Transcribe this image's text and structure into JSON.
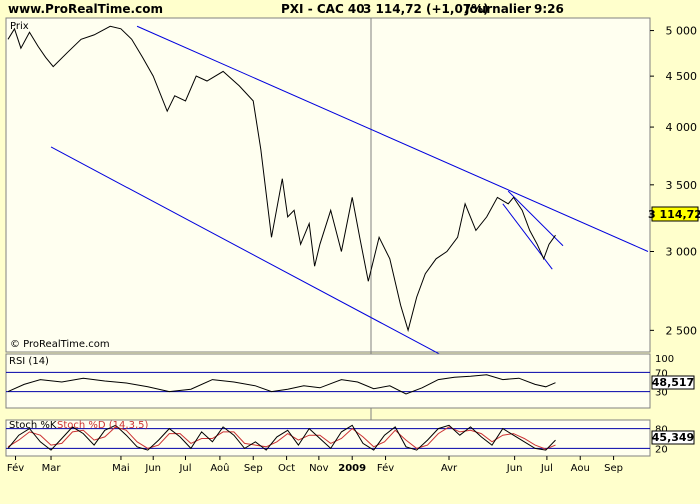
{
  "header": {
    "site": "www.ProRealTime.com",
    "instrument": "PXI - CAC 40",
    "quote": "3 114,72 (+1,07%)",
    "period": "Journalier",
    "time": "9:26"
  },
  "watermark": "© ProRealTime.com",
  "colors": {
    "background": "#ffffcc",
    "plot_background": "#fffff0",
    "price_line": "#000000",
    "trend_line": "#0000dd",
    "stoch_k": "#000000",
    "stoch_d": "#cc3333",
    "last_value_box": "#ffff00",
    "rsi_value_box": "#ffffff"
  },
  "chart_data": [
    {
      "type": "line",
      "title": "PXI - CAC 40",
      "legend": "Prix",
      "ylabel": "",
      "y_ticks": [
        2500,
        3000,
        3500,
        4000,
        4500,
        5000
      ],
      "y_tick_labels": [
        "2 500",
        "3 000",
        "3 500",
        "4 000",
        "4 500",
        "5 000"
      ],
      "ylim": [
        2400,
        5100
      ],
      "last_value": 3114.72,
      "last_value_label": "3 114,72",
      "x_labels": [
        "Fév",
        "Mar",
        "Mai",
        "Jun",
        "Jul",
        "Aoû",
        "Sep",
        "Oct",
        "Nov",
        "2009",
        "Fév",
        "Avr",
        "Jun",
        "Jul",
        "Aou",
        "Sep"
      ],
      "x_label_days": [
        7,
        40,
        105,
        135,
        165,
        197,
        228,
        259,
        289,
        320,
        351,
        410,
        471,
        501,
        532,
        563
      ],
      "x_range_days": [
        0,
        595
      ],
      "x_axis_note": "days counted from 1 Feb 2008",
      "series": [
        {
          "name": "Prix",
          "x": [
            0,
            6,
            12,
            20,
            28,
            35,
            42,
            55,
            68,
            80,
            95,
            105,
            115,
            125,
            135,
            148,
            155,
            165,
            175,
            185,
            200,
            215,
            228,
            235,
            245,
            255,
            260,
            266,
            272,
            280,
            285,
            290,
            300,
            310,
            320,
            327,
            335,
            345,
            355,
            365,
            372,
            380,
            388,
            398,
            408,
            418,
            425,
            435,
            445,
            455,
            465,
            470,
            478,
            485,
            492,
            498,
            503,
            509
          ],
          "y": [
            4900,
            5020,
            4800,
            4980,
            4820,
            4700,
            4600,
            4750,
            4900,
            4950,
            5050,
            5020,
            4900,
            4700,
            4500,
            4150,
            4300,
            4250,
            4500,
            4450,
            4550,
            4400,
            4250,
            3800,
            3100,
            3550,
            3250,
            3300,
            3050,
            3200,
            2900,
            3050,
            3300,
            3000,
            3400,
            3100,
            2800,
            3100,
            2950,
            2650,
            2500,
            2700,
            2850,
            2950,
            3000,
            3100,
            3350,
            3150,
            3250,
            3400,
            3350,
            3400,
            3300,
            3150,
            3050,
            2950,
            3050,
            3115
          ]
        }
      ],
      "trend_lines": [
        {
          "x": [
            120,
            595
          ],
          "y": [
            5050,
            3000
          ]
        },
        {
          "x": [
            40,
            413
          ],
          "y": [
            3820,
            2330
          ]
        },
        {
          "x": [
            465,
            516
          ],
          "y": [
            3450,
            3040
          ]
        },
        {
          "x": [
            460,
            506
          ],
          "y": [
            3350,
            2880
          ]
        }
      ],
      "annotations": [
        "© ProRealTime.com"
      ]
    },
    {
      "type": "line",
      "title": "RSI (14)",
      "y_ticks": [
        30,
        70,
        100
      ],
      "y_tick_labels": [
        "30",
        "70",
        "100"
      ],
      "ylim": [
        0,
        100
      ],
      "last_value": 48.517,
      "last_value_label": "48,517",
      "levels": [
        30,
        70
      ],
      "series": [
        {
          "name": "RSI (14)",
          "x": [
            0,
            15,
            30,
            50,
            70,
            90,
            110,
            130,
            150,
            170,
            190,
            210,
            230,
            245,
            260,
            275,
            290,
            310,
            325,
            340,
            355,
            370,
            385,
            400,
            415,
            430,
            445,
            460,
            475,
            490,
            500,
            509
          ],
          "y": [
            30,
            45,
            55,
            50,
            58,
            52,
            48,
            40,
            30,
            35,
            55,
            50,
            42,
            30,
            35,
            42,
            38,
            55,
            50,
            36,
            42,
            25,
            38,
            55,
            60,
            62,
            65,
            55,
            58,
            45,
            40,
            48.5
          ]
        }
      ]
    },
    {
      "type": "line",
      "title": "Stoch %K",
      "title_extra": "Stoch %D (14,3,5)",
      "y_ticks": [
        20,
        80
      ],
      "y_tick_labels": [
        "20",
        "80"
      ],
      "ylim": [
        0,
        100
      ],
      "last_value": 45.349,
      "last_value_label": "45,349",
      "levels": [
        20,
        80
      ],
      "series": [
        {
          "name": "Stoch %K",
          "x": [
            0,
            10,
            20,
            30,
            40,
            50,
            60,
            70,
            80,
            90,
            100,
            110,
            120,
            130,
            140,
            150,
            160,
            170,
            180,
            190,
            200,
            210,
            220,
            230,
            240,
            250,
            260,
            270,
            280,
            290,
            300,
            310,
            320,
            330,
            340,
            350,
            360,
            370,
            380,
            390,
            400,
            410,
            420,
            430,
            440,
            450,
            460,
            470,
            480,
            490,
            500,
            509
          ],
          "y": [
            20,
            60,
            80,
            40,
            15,
            50,
            85,
            65,
            30,
            75,
            90,
            60,
            25,
            15,
            45,
            80,
            55,
            20,
            70,
            40,
            85,
            60,
            20,
            40,
            15,
            55,
            75,
            30,
            80,
            50,
            20,
            70,
            90,
            35,
            15,
            60,
            85,
            25,
            15,
            45,
            80,
            90,
            60,
            85,
            55,
            30,
            80,
            60,
            40,
            20,
            15,
            45.3
          ]
        },
        {
          "name": "Stoch %D",
          "x": [
            0,
            10,
            20,
            30,
            40,
            50,
            60,
            70,
            80,
            90,
            100,
            110,
            120,
            130,
            140,
            150,
            160,
            170,
            180,
            190,
            200,
            210,
            220,
            230,
            240,
            250,
            260,
            270,
            280,
            290,
            300,
            310,
            320,
            330,
            340,
            350,
            360,
            370,
            380,
            390,
            400,
            410,
            420,
            430,
            440,
            450,
            460,
            470,
            480,
            490,
            500,
            509
          ],
          "y": [
            25,
            45,
            70,
            60,
            30,
            35,
            70,
            75,
            45,
            55,
            85,
            75,
            40,
            20,
            30,
            65,
            65,
            35,
            50,
            50,
            70,
            70,
            35,
            30,
            25,
            40,
            65,
            45,
            60,
            60,
            35,
            50,
            80,
            55,
            25,
            40,
            75,
            45,
            20,
            30,
            65,
            85,
            70,
            75,
            65,
            40,
            60,
            65,
            50,
            30,
            18,
            30
          ]
        }
      ]
    }
  ]
}
